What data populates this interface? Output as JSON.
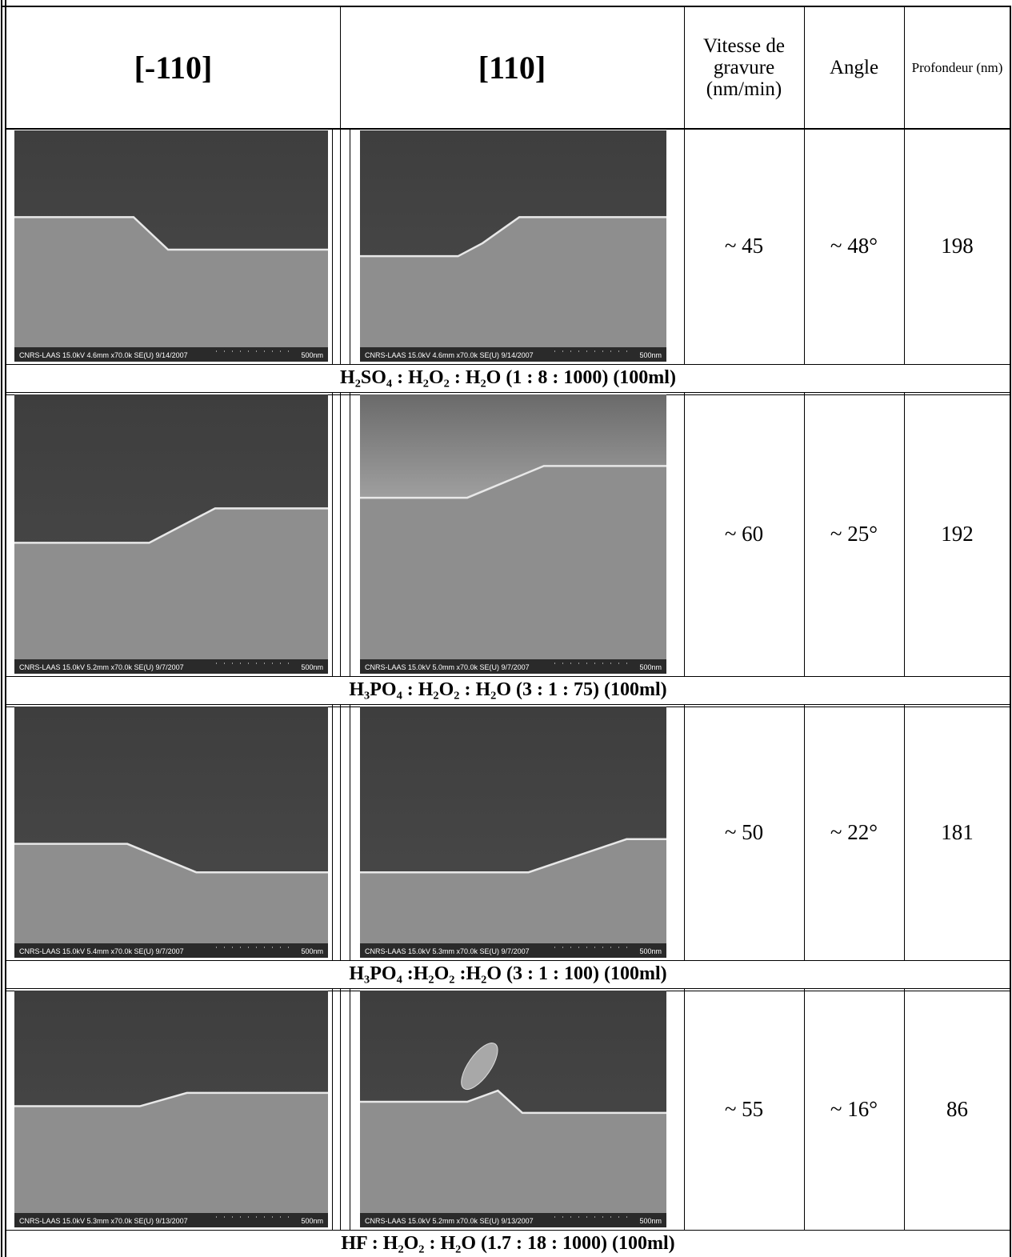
{
  "header": {
    "columns": [
      "[-110]",
      "[110]",
      "Vitesse de gravure (nm/min)",
      "Angle",
      "Profondeur (nm)"
    ]
  },
  "rows": [
    {
      "images": [
        {
          "caption": "CNRS-LAAS 15.0kV 4.6mm x70.0k SE(U) 9/14/2007",
          "scale": "500nm"
        },
        {
          "caption": "CNRS-LAAS 15.0kV 4.6mm x70.0k SE(U) 9/14/2007",
          "scale": "500nm"
        }
      ],
      "rate": "~ 45",
      "angle": "~ 48°",
      "depth": "198",
      "solution": "H₂SO₄ : H₂O₂ : H₂O (1 : 8 : 1000) (100ml)"
    },
    {
      "images": [
        {
          "caption": "CNRS-LAAS 15.0kV 5.2mm x70.0k SE(U) 9/7/2007",
          "scale": "500nm"
        },
        {
          "caption": "CNRS-LAAS 15.0kV 5.0mm x70.0k SE(U) 9/7/2007",
          "scale": "500nm"
        }
      ],
      "rate": "~ 60",
      "angle": "~ 25°",
      "depth": "192",
      "solution": "H₃PO₄ : H₂O₂ : H₂O (3 : 1 : 75) (100ml)"
    },
    {
      "images": [
        {
          "caption": "CNRS-LAAS 15.0kV 5.4mm x70.0k SE(U) 9/7/2007",
          "scale": "500nm"
        },
        {
          "caption": "CNRS-LAAS 15.0kV 5.3mm x70.0k SE(U) 9/7/2007",
          "scale": "500nm"
        }
      ],
      "rate": "~ 50",
      "angle": "~ 22°",
      "depth": "181",
      "solution": "H₃PO₄ :H₂O₂ :H₂O (3 : 1 : 100) (100ml)"
    },
    {
      "images": [
        {
          "caption": "CNRS-LAAS 15.0kV 5.3mm x70.0k SE(U) 9/13/2007",
          "scale": "500nm"
        },
        {
          "caption": "CNRS-LAAS 15.0kV 5.2mm x70.0k SE(U) 9/13/2007",
          "scale": "500nm"
        }
      ],
      "rate": "~ 55",
      "angle": "~ 16°",
      "depth": "86",
      "solution": "HF : H₂O₂ : H₂O (1.7 : 18 : 1000) (100ml)"
    }
  ]
}
